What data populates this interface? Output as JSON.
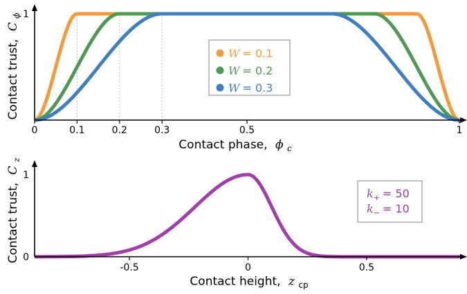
{
  "chart_data": [
    {
      "type": "line",
      "xlabel_text": "Contact phase,",
      "xlabel_symbol": "ϕ",
      "xlabel_sub": "c",
      "ylabel_text": "Contact trust,",
      "ylabel_symbol": "C",
      "ylabel_sub": "ϕ",
      "xlim": [
        0,
        1
      ],
      "ylim": [
        0,
        1
      ],
      "x_ticks": [
        {
          "value": 0,
          "label": "0"
        },
        {
          "value": 0.1,
          "label": "0.1"
        },
        {
          "value": 0.2,
          "label": "0.2"
        },
        {
          "value": 0.3,
          "label": "0.3"
        },
        {
          "value": 0.5,
          "label": "0.5"
        },
        {
          "value": 1,
          "label": "1"
        }
      ],
      "y_ticks": [
        {
          "value": 1,
          "label": "1"
        }
      ],
      "reference_lines_x": [
        0.1,
        0.2,
        0.3
      ],
      "legend_position": "center",
      "series": [
        {
          "name_symbol": "W",
          "name_value": "= 0.1",
          "width_param": 0.1,
          "color": "#f59a3a"
        },
        {
          "name_symbol": "W",
          "name_value": "= 0.2",
          "width_param": 0.2,
          "color": "#4f9a52"
        },
        {
          "name_symbol": "W",
          "name_value": "= 0.3",
          "width_param": 0.3,
          "color": "#3f7fbf"
        }
      ]
    },
    {
      "type": "line",
      "xlabel_text": "Contact height,",
      "xlabel_symbol": "z",
      "xlabel_sub": "cp",
      "ylabel_text": "Contact trust,",
      "ylabel_symbol": "C",
      "ylabel_sub": "z",
      "xlim": [
        -0.9,
        0.9
      ],
      "ylim": [
        0,
        1
      ],
      "x_ticks": [
        {
          "value": -0.5,
          "label": "-0.5"
        },
        {
          "value": 0,
          "label": "0"
        },
        {
          "value": 0.5,
          "label": "0.5"
        }
      ],
      "y_ticks": [
        {
          "value": 0,
          "label": "0"
        },
        {
          "value": 1,
          "label": "1"
        }
      ],
      "legend_position": "right",
      "k_plus": 50,
      "k_minus": 10,
      "legend_lines": [
        {
          "symbol": "k",
          "sub": "+",
          "value": "= 50"
        },
        {
          "symbol": "k",
          "sub": "−",
          "value": "= 10"
        }
      ],
      "series": [
        {
          "color": "#a23ea8"
        }
      ]
    }
  ]
}
